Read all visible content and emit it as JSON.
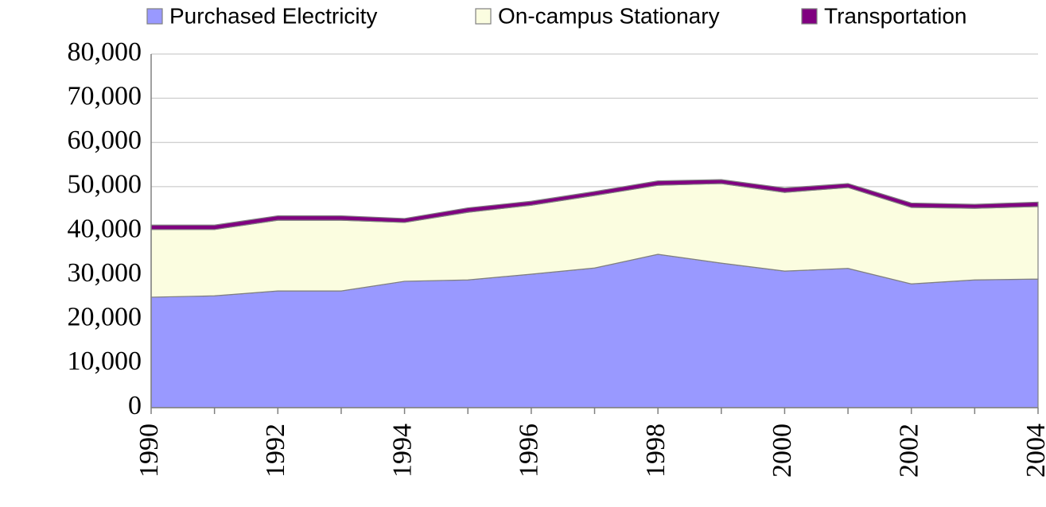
{
  "chart_data": {
    "type": "stacked_area",
    "x": [
      1990,
      1991,
      1992,
      1993,
      1994,
      1995,
      1996,
      1997,
      1998,
      1999,
      2000,
      2001,
      2002,
      2003,
      2004
    ],
    "series": [
      {
        "name": "Purchased Electricity",
        "color": "#9999ff",
        "values": [
          25000,
          25300,
          26400,
          26400,
          28600,
          28900,
          30200,
          31600,
          34700,
          32700,
          30900,
          31500,
          28000,
          28900,
          29100
        ]
      },
      {
        "name": "On-campus Stationary",
        "color": "#fbfde0",
        "values": [
          15300,
          15000,
          16000,
          16000,
          13300,
          15300,
          15600,
          16400,
          15600,
          18000,
          17800,
          18300,
          17300,
          16200,
          16400
        ]
      },
      {
        "name": "Transportation",
        "color": "#800080",
        "values": [
          1000,
          1000,
          1000,
          1000,
          900,
          1000,
          900,
          900,
          1000,
          900,
          1000,
          900,
          1000,
          900,
          1000
        ]
      }
    ],
    "xlim": [
      1990,
      2004
    ],
    "xticks": [
      1990,
      1992,
      1994,
      1996,
      1998,
      2000,
      2002,
      2004
    ],
    "ylim": [
      0,
      80000
    ],
    "yticks": [
      0,
      {
        "value": 10000,
        "label": "10,000"
      },
      {
        "value": 20000,
        "label": "20,000"
      },
      {
        "value": 30000,
        "label": "30,000"
      },
      {
        "value": 40000,
        "label": "40,000"
      },
      {
        "value": 50000,
        "label": "50,000"
      },
      {
        "value": 60000,
        "label": "60,000"
      },
      {
        "value": 70000,
        "label": "70,000"
      },
      {
        "value": 80000,
        "label": "80,000"
      }
    ],
    "grid": true,
    "legend": "top"
  }
}
